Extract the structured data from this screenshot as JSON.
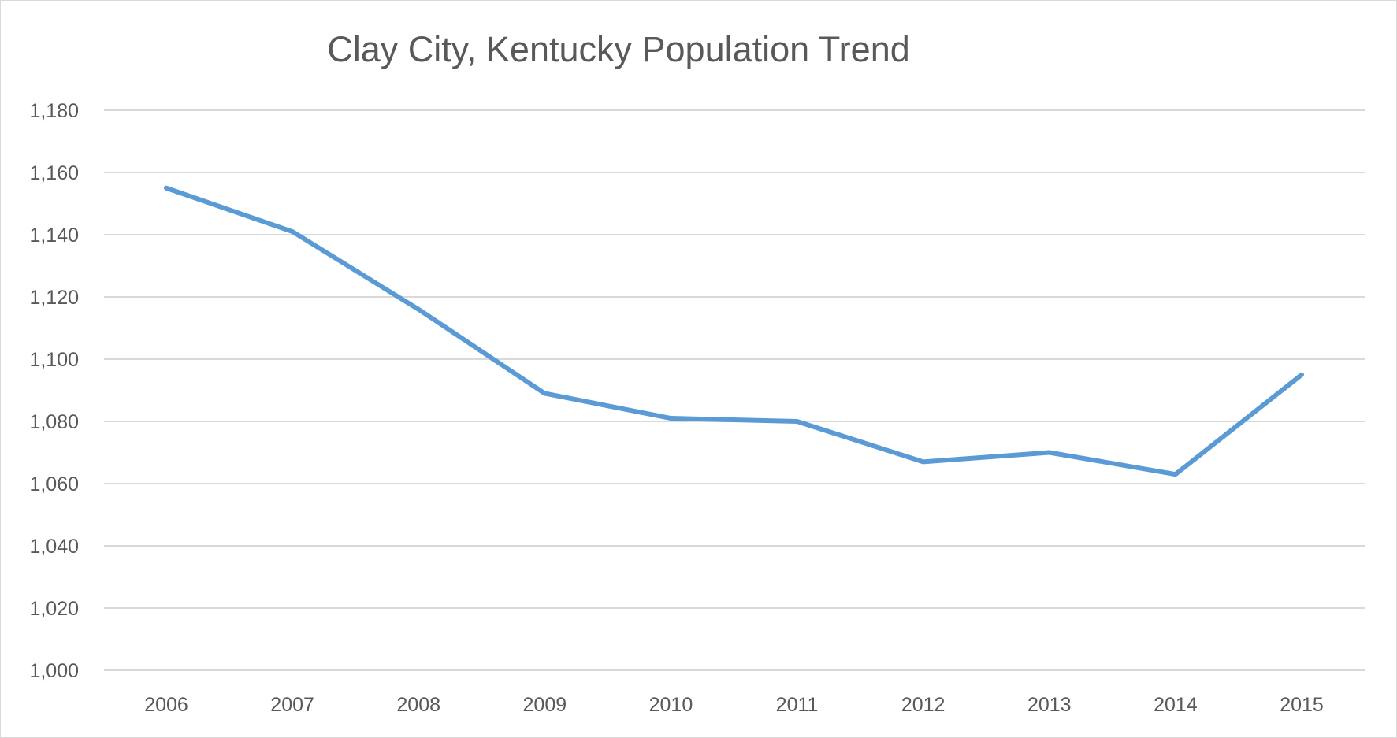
{
  "chart_data": {
    "type": "line",
    "title": "Clay City, Kentucky Population Trend",
    "xlabel": "",
    "ylabel": "",
    "categories": [
      "2006",
      "2007",
      "2008",
      "2009",
      "2010",
      "2011",
      "2012",
      "2013",
      "2014",
      "2015"
    ],
    "values": [
      1155,
      1141,
      1116,
      1089,
      1081,
      1080,
      1067,
      1070,
      1063,
      1095
    ],
    "ylim": [
      1000,
      1180
    ],
    "yticks": [
      1000,
      1020,
      1040,
      1060,
      1080,
      1100,
      1120,
      1140,
      1160,
      1180
    ],
    "ytick_labels": [
      "1,000",
      "1,020",
      "1,040",
      "1,060",
      "1,080",
      "1,100",
      "1,120",
      "1,140",
      "1,160",
      "1,180"
    ],
    "grid": true,
    "legend": "none",
    "line_color": "#5b9bd5",
    "grid_color": "#d9d9d9"
  }
}
